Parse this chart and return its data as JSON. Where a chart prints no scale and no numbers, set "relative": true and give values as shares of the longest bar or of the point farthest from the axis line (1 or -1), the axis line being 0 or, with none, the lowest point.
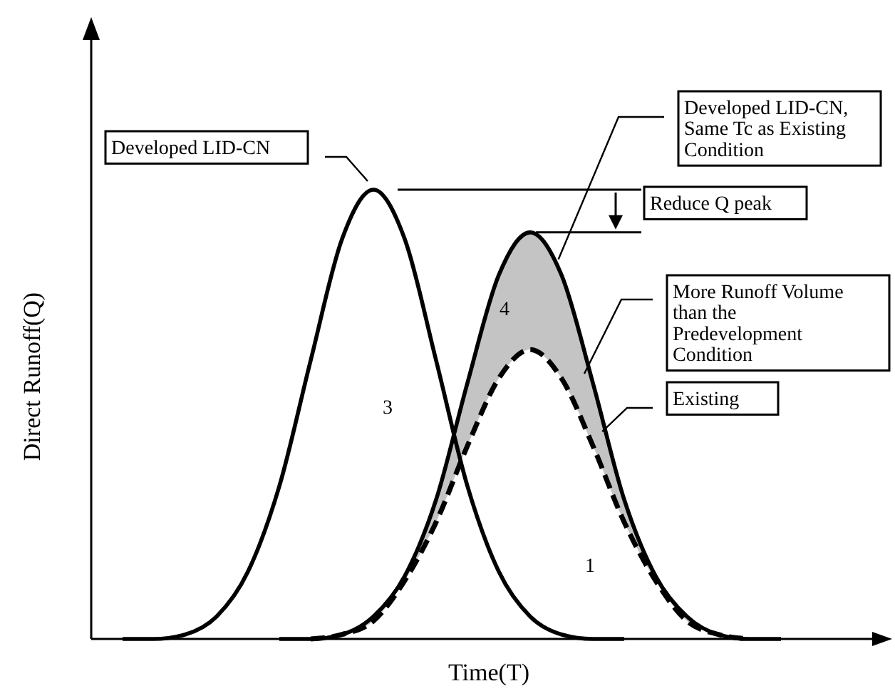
{
  "chart_data": {
    "type": "line",
    "relative": true,
    "xlabel": "Time(T)",
    "ylabel": "Direct Runoff(Q)",
    "categories": [
      null,
      null,
      null,
      null,
      null,
      null,
      null,
      null,
      null,
      null,
      null,
      null,
      null,
      null,
      null,
      null,
      null,
      null,
      null,
      null,
      null,
      null,
      null,
      null,
      null,
      null
    ],
    "series": [
      {
        "name": "Developed LID-CN",
        "color": "#000000",
        "line_style": "solid",
        "values": [
          null,
          0,
          0,
          0.01,
          0.05,
          0.15,
          0.34,
          0.62,
          0.89,
          1,
          0.89,
          0.62,
          0.34,
          0.15,
          0.05,
          0.01,
          0,
          0,
          null,
          null,
          null,
          null,
          null,
          null,
          null,
          null
        ]
      },
      {
        "name": "Developed LID-CN, Same Tc as Existing Condition",
        "color": "#000000",
        "line_style": "solid",
        "values": [
          null,
          null,
          null,
          null,
          null,
          null,
          0,
          0,
          0.01,
          0.05,
          0.14,
          0.31,
          0.57,
          0.81,
          0.905,
          0.81,
          0.57,
          0.31,
          0.14,
          0.05,
          0.01,
          0,
          0,
          null,
          null,
          null
        ],
        "lower": [
          null,
          null,
          null,
          null,
          null,
          null,
          null,
          0,
          0.01,
          0.04,
          0.13,
          0.26,
          0.43,
          0.58,
          0.644,
          0.58,
          0.43,
          0.26,
          0.13,
          0.04,
          0.01,
          0,
          null,
          null,
          null,
          null
        ],
        "upper": [
          null,
          null,
          null,
          null,
          null,
          null,
          null,
          0,
          0.01,
          0.05,
          0.14,
          0.31,
          0.57,
          0.81,
          0.905,
          0.81,
          0.57,
          0.31,
          0.14,
          0.05,
          0.01,
          0,
          null,
          null,
          null,
          null
        ]
      },
      {
        "name": "Existing",
        "color": "#000000",
        "line_style": "dashed",
        "values": [
          null,
          null,
          null,
          null,
          null,
          null,
          null,
          0,
          0.01,
          0.04,
          0.13,
          0.26,
          0.43,
          0.58,
          0.644,
          0.58,
          0.43,
          0.26,
          0.13,
          0.04,
          0.01,
          0,
          null,
          null,
          null,
          null
        ]
      }
    ],
    "ref_lines": [
      {
        "axis": "y",
        "value": 1
      },
      {
        "axis": "y",
        "value": 0.905,
        "label": "Reduce Q peak"
      }
    ],
    "annotations": [
      "3",
      "4",
      "1",
      "More Runoff Volume than the Predevelopment Condition"
    ]
  }
}
